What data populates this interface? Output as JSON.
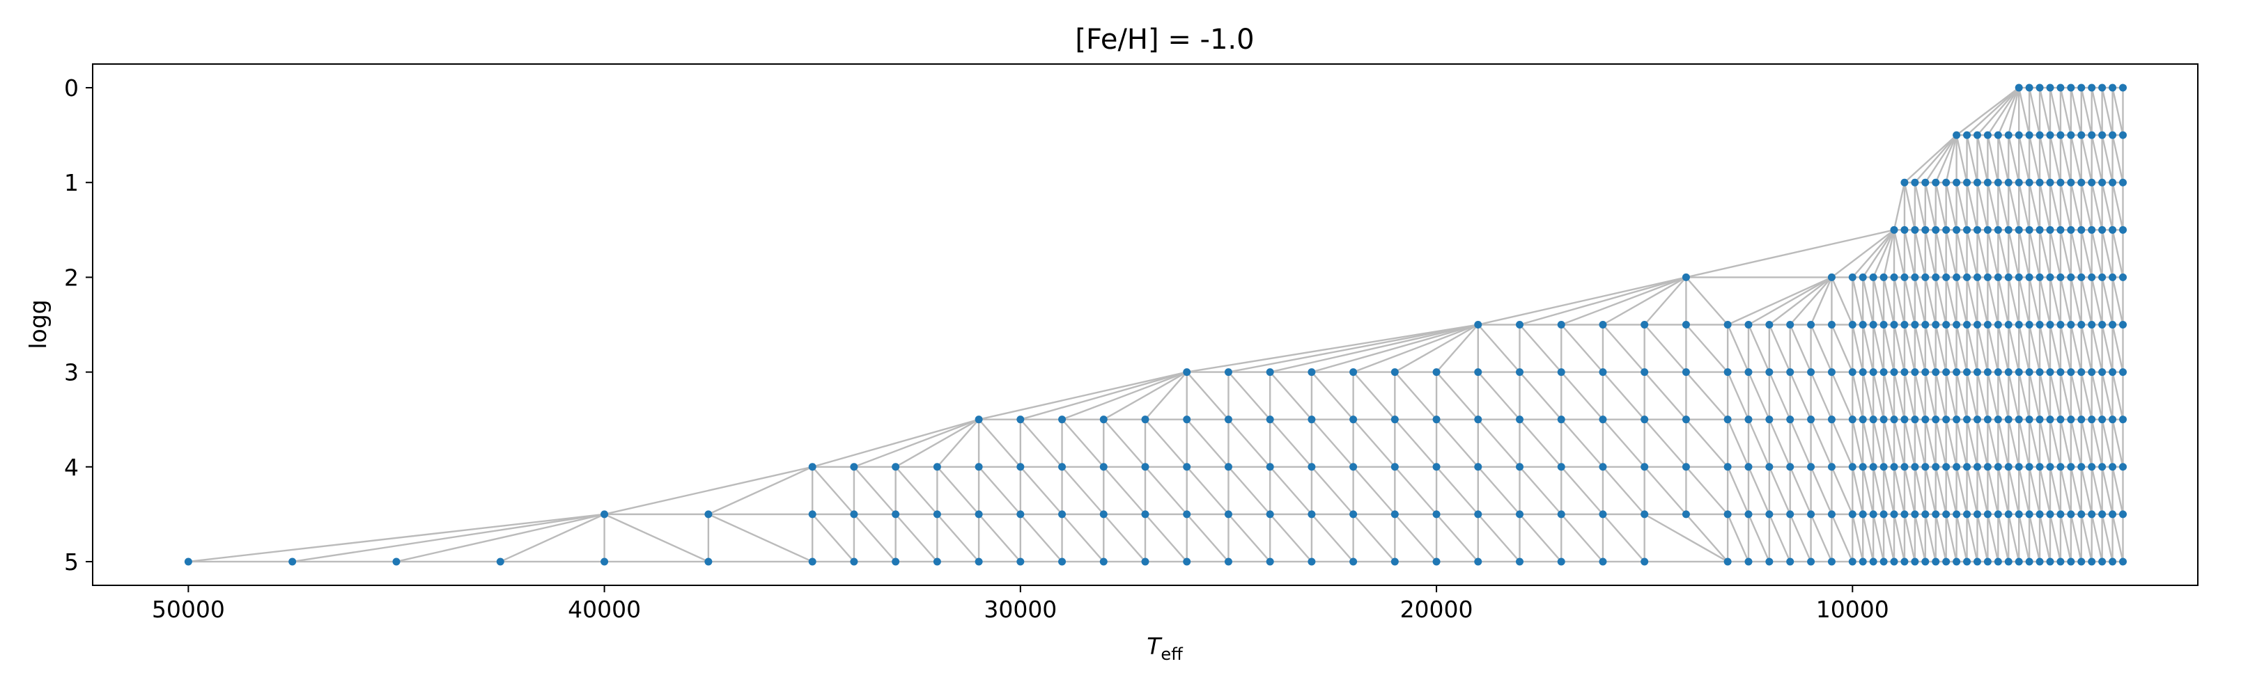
{
  "chart_data": {
    "type": "scatter",
    "title": "[Fe/H] = -1.0",
    "xlabel_main": "T",
    "xlabel_sub": "eff",
    "ylabel": "logg",
    "x_inverted": true,
    "y_inverted": true,
    "xlim": [
      52300,
      1700
    ],
    "ylim": [
      5.25,
      -0.25
    ],
    "xticks": [
      {
        "value": 50000,
        "label": "50000"
      },
      {
        "value": 40000,
        "label": "40000"
      },
      {
        "value": 30000,
        "label": "30000"
      },
      {
        "value": 20000,
        "label": "20000"
      },
      {
        "value": 10000,
        "label": "10000"
      }
    ],
    "yticks": [
      {
        "value": 0,
        "label": "0"
      },
      {
        "value": 1,
        "label": "1"
      },
      {
        "value": 2,
        "label": "2"
      },
      {
        "value": 3,
        "label": "3"
      },
      {
        "value": 4,
        "label": "4"
      },
      {
        "value": 5,
        "label": "5"
      }
    ],
    "grid": false,
    "point_color": "#1f77b4",
    "mesh_color": "#bbbbbb",
    "rows": [
      {
        "logg": 0.0,
        "teff": [
          6000,
          5750,
          5500,
          5250,
          5000,
          4750,
          4500,
          4250,
          4000,
          3750,
          3500
        ]
      },
      {
        "logg": 0.5,
        "teff": [
          7500,
          7250,
          7000,
          6750,
          6500,
          6250,
          6000,
          5750,
          5500,
          5250,
          5000,
          4750,
          4500,
          4250,
          4000,
          3750,
          3500
        ]
      },
      {
        "logg": 1.0,
        "teff": [
          8750,
          8500,
          8250,
          8000,
          7750,
          7500,
          7250,
          7000,
          6750,
          6500,
          6250,
          6000,
          5750,
          5500,
          5250,
          5000,
          4750,
          4500,
          4250,
          4000,
          3750,
          3500
        ]
      },
      {
        "logg": 1.5,
        "teff": [
          9000,
          8750,
          8500,
          8250,
          8000,
          7750,
          7500,
          7250,
          7000,
          6750,
          6500,
          6250,
          6000,
          5750,
          5500,
          5250,
          5000,
          4750,
          4500,
          4250,
          4000,
          3750,
          3500
        ]
      },
      {
        "logg": 2.0,
        "teff": [
          14000,
          10500,
          10000,
          9750,
          9500,
          9250,
          9000,
          8750,
          8500,
          8250,
          8000,
          7750,
          7500,
          7250,
          7000,
          6750,
          6500,
          6250,
          6000,
          5750,
          5500,
          5250,
          5000,
          4750,
          4500,
          4250,
          4000,
          3750,
          3500
        ]
      },
      {
        "logg": 2.5,
        "teff": [
          19000,
          18000,
          17000,
          16000,
          15000,
          14000,
          13000,
          12500,
          12000,
          11500,
          11000,
          10500,
          10000,
          9750,
          9500,
          9250,
          9000,
          8750,
          8500,
          8250,
          8000,
          7750,
          7500,
          7250,
          7000,
          6750,
          6500,
          6250,
          6000,
          5750,
          5500,
          5250,
          5000,
          4750,
          4500,
          4250,
          4000,
          3750,
          3500
        ]
      },
      {
        "logg": 3.0,
        "teff": [
          26000,
          25000,
          24000,
          23000,
          22000,
          21000,
          20000,
          19000,
          18000,
          17000,
          16000,
          15000,
          14000,
          13000,
          12500,
          12000,
          11500,
          11000,
          10500,
          10000,
          9750,
          9500,
          9250,
          9000,
          8750,
          8500,
          8250,
          8000,
          7750,
          7500,
          7250,
          7000,
          6750,
          6500,
          6250,
          6000,
          5750,
          5500,
          5250,
          5000,
          4750,
          4500,
          4250,
          4000,
          3750,
          3500
        ]
      },
      {
        "logg": 3.5,
        "teff": [
          31000,
          30000,
          29000,
          28000,
          27000,
          26000,
          25000,
          24000,
          23000,
          22000,
          21000,
          20000,
          19000,
          18000,
          17000,
          16000,
          15000,
          14000,
          13000,
          12500,
          12000,
          11500,
          11000,
          10500,
          10000,
          9750,
          9500,
          9250,
          9000,
          8750,
          8500,
          8250,
          8000,
          7750,
          7500,
          7250,
          7000,
          6750,
          6500,
          6250,
          6000,
          5750,
          5500,
          5250,
          5000,
          4750,
          4500,
          4250,
          4000,
          3750,
          3500
        ]
      },
      {
        "logg": 4.0,
        "teff": [
          35000,
          34000,
          33000,
          32000,
          31000,
          30000,
          29000,
          28000,
          27000,
          26000,
          25000,
          24000,
          23000,
          22000,
          21000,
          20000,
          19000,
          18000,
          17000,
          16000,
          15000,
          14000,
          13000,
          12500,
          12000,
          11500,
          11000,
          10500,
          10000,
          9750,
          9500,
          9250,
          9000,
          8750,
          8500,
          8250,
          8000,
          7750,
          7500,
          7250,
          7000,
          6750,
          6500,
          6250,
          6000,
          5750,
          5500,
          5250,
          5000,
          4750,
          4500,
          4250,
          4000,
          3750,
          3500
        ]
      },
      {
        "logg": 4.5,
        "teff": [
          40000,
          37500,
          35000,
          34000,
          33000,
          32000,
          31000,
          30000,
          29000,
          28000,
          27000,
          26000,
          25000,
          24000,
          23000,
          22000,
          21000,
          20000,
          19000,
          18000,
          17000,
          16000,
          15000,
          14000,
          13000,
          12500,
          12000,
          11500,
          11000,
          10500,
          10000,
          9750,
          9500,
          9250,
          9000,
          8750,
          8500,
          8250,
          8000,
          7750,
          7500,
          7250,
          7000,
          6750,
          6500,
          6250,
          6000,
          5750,
          5500,
          5250,
          5000,
          4750,
          4500,
          4250,
          4000,
          3750,
          3500
        ]
      },
      {
        "logg": 5.0,
        "teff": [
          50000,
          47500,
          45000,
          42500,
          40000,
          37500,
          35000,
          34000,
          33000,
          32000,
          31000,
          30000,
          29000,
          28000,
          27000,
          26000,
          25000,
          24000,
          23000,
          22000,
          21000,
          20000,
          19000,
          18000,
          17000,
          16000,
          15000,
          13000,
          12500,
          12000,
          11500,
          11000,
          10500,
          10000,
          9750,
          9500,
          9250,
          9000,
          8750,
          8500,
          8250,
          8000,
          7750,
          7500,
          7250,
          7000,
          6750,
          6500,
          6250,
          6000,
          5750,
          5500,
          5250,
          5000,
          4750,
          4500,
          4250,
          4000,
          3750,
          3500
        ]
      }
    ]
  }
}
